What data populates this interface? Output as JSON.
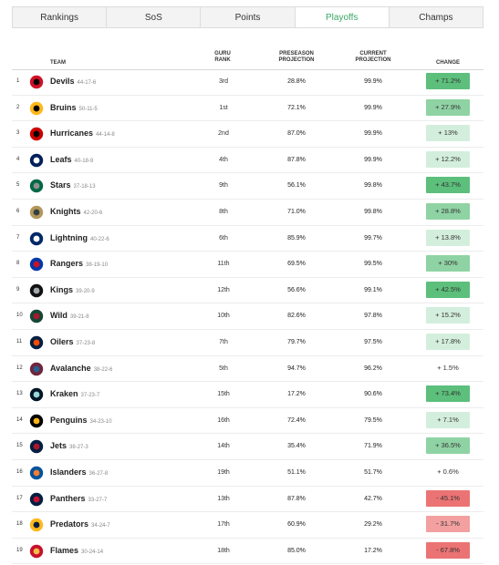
{
  "tabs": [
    {
      "label": "Rankings",
      "active": false
    },
    {
      "label": "SoS",
      "active": false
    },
    {
      "label": "Points",
      "active": false
    },
    {
      "label": "Playoffs",
      "active": true
    },
    {
      "label": "Champs",
      "active": false
    }
  ],
  "columns": {
    "team": "TEAM",
    "guru_rank": "GURU RANK",
    "preseason": "PRESEASON PROJECTION",
    "current": "CURRENT PROJECTION",
    "change": "CHANGE"
  },
  "colors": {
    "active_tab": "#3aa865",
    "positive_strong": "#5cbf7b",
    "positive_mid": "#8fd3a4",
    "positive_light": "#d4eedd",
    "neutral": "#ffffff",
    "negative_mid": "#f2a0a0",
    "negative_strong": "#eb7373"
  },
  "rows": [
    {
      "rank": "1",
      "team": "Devils",
      "record": "44-17-6",
      "guru": "3rd",
      "pre": "28.8%",
      "cur": "99.9%",
      "change": "+ 71.2%",
      "change_value": 71.2,
      "logo_icon": "devils-logo-icon"
    },
    {
      "rank": "2",
      "team": "Bruins",
      "record": "50-11-5",
      "guru": "1st",
      "pre": "72.1%",
      "cur": "99.9%",
      "change": "+ 27.9%",
      "change_value": 27.9,
      "logo_icon": "bruins-logo-icon"
    },
    {
      "rank": "3",
      "team": "Hurricanes",
      "record": "44-14-8",
      "guru": "2nd",
      "pre": "87.0%",
      "cur": "99.9%",
      "change": "+ 13%",
      "change_value": 13,
      "logo_icon": "hurricanes-logo-icon"
    },
    {
      "rank": "4",
      "team": "Leafs",
      "record": "40-18-9",
      "guru": "4th",
      "pre": "87.8%",
      "cur": "99.9%",
      "change": "+ 12.2%",
      "change_value": 12.2,
      "logo_icon": "leafs-logo-icon"
    },
    {
      "rank": "5",
      "team": "Stars",
      "record": "37-18-13",
      "guru": "9th",
      "pre": "56.1%",
      "cur": "99.8%",
      "change": "+ 43.7%",
      "change_value": 43.7,
      "logo_icon": "stars-logo-icon"
    },
    {
      "rank": "6",
      "team": "Knights",
      "record": "42-20-6",
      "guru": "8th",
      "pre": "71.0%",
      "cur": "99.8%",
      "change": "+ 28.8%",
      "change_value": 28.8,
      "logo_icon": "knights-logo-icon"
    },
    {
      "rank": "7",
      "team": "Lightning",
      "record": "40-22-6",
      "guru": "6th",
      "pre": "85.9%",
      "cur": "99.7%",
      "change": "+ 13.8%",
      "change_value": 13.8,
      "logo_icon": "lightning-logo-icon"
    },
    {
      "rank": "8",
      "team": "Rangers",
      "record": "38-19-10",
      "guru": "11th",
      "pre": "69.5%",
      "cur": "99.5%",
      "change": "+ 30%",
      "change_value": 30,
      "logo_icon": "rangers-logo-icon"
    },
    {
      "rank": "9",
      "team": "Kings",
      "record": "39-20-9",
      "guru": "12th",
      "pre": "56.6%",
      "cur": "99.1%",
      "change": "+ 42.5%",
      "change_value": 42.5,
      "logo_icon": "kings-logo-icon"
    },
    {
      "rank": "10",
      "team": "Wild",
      "record": "39-21-8",
      "guru": "10th",
      "pre": "82.6%",
      "cur": "97.8%",
      "change": "+ 15.2%",
      "change_value": 15.2,
      "logo_icon": "wild-logo-icon"
    },
    {
      "rank": "11",
      "team": "Oilers",
      "record": "37-23-8",
      "guru": "7th",
      "pre": "79.7%",
      "cur": "97.5%",
      "change": "+ 17.8%",
      "change_value": 17.8,
      "logo_icon": "oilers-logo-icon"
    },
    {
      "rank": "12",
      "team": "Avalanche",
      "record": "38-22-6",
      "guru": "5th",
      "pre": "94.7%",
      "cur": "96.2%",
      "change": "+ 1.5%",
      "change_value": 1.5,
      "logo_icon": "avalanche-logo-icon"
    },
    {
      "rank": "13",
      "team": "Kraken",
      "record": "37-23-7",
      "guru": "15th",
      "pre": "17.2%",
      "cur": "90.6%",
      "change": "+ 73.4%",
      "change_value": 73.4,
      "logo_icon": "kraken-logo-icon"
    },
    {
      "rank": "14",
      "team": "Penguins",
      "record": "34-23-10",
      "guru": "16th",
      "pre": "72.4%",
      "cur": "79.5%",
      "change": "+ 7.1%",
      "change_value": 7.1,
      "logo_icon": "penguins-logo-icon"
    },
    {
      "rank": "15",
      "team": "Jets",
      "record": "38-27-3",
      "guru": "14th",
      "pre": "35.4%",
      "cur": "71.9%",
      "change": "+ 36.5%",
      "change_value": 36.5,
      "logo_icon": "jets-logo-icon"
    },
    {
      "rank": "16",
      "team": "Islanders",
      "record": "36-27-8",
      "guru": "19th",
      "pre": "51.1%",
      "cur": "51.7%",
      "change": "+ 0.6%",
      "change_value": 0.6,
      "logo_icon": "islanders-logo-icon"
    },
    {
      "rank": "17",
      "team": "Panthers",
      "record": "33-27-7",
      "guru": "13th",
      "pre": "87.8%",
      "cur": "42.7%",
      "change": "- 45.1%",
      "change_value": -45.1,
      "logo_icon": "panthers-logo-icon"
    },
    {
      "rank": "18",
      "team": "Predators",
      "record": "34-24-7",
      "guru": "17th",
      "pre": "60.9%",
      "cur": "29.2%",
      "change": "- 31.7%",
      "change_value": -31.7,
      "logo_icon": "predators-logo-icon"
    },
    {
      "rank": "19",
      "team": "Flames",
      "record": "30-24-14",
      "guru": "18th",
      "pre": "85.0%",
      "cur": "17.2%",
      "change": "- 67.8%",
      "change_value": -67.8,
      "logo_icon": "flames-logo-icon"
    }
  ]
}
